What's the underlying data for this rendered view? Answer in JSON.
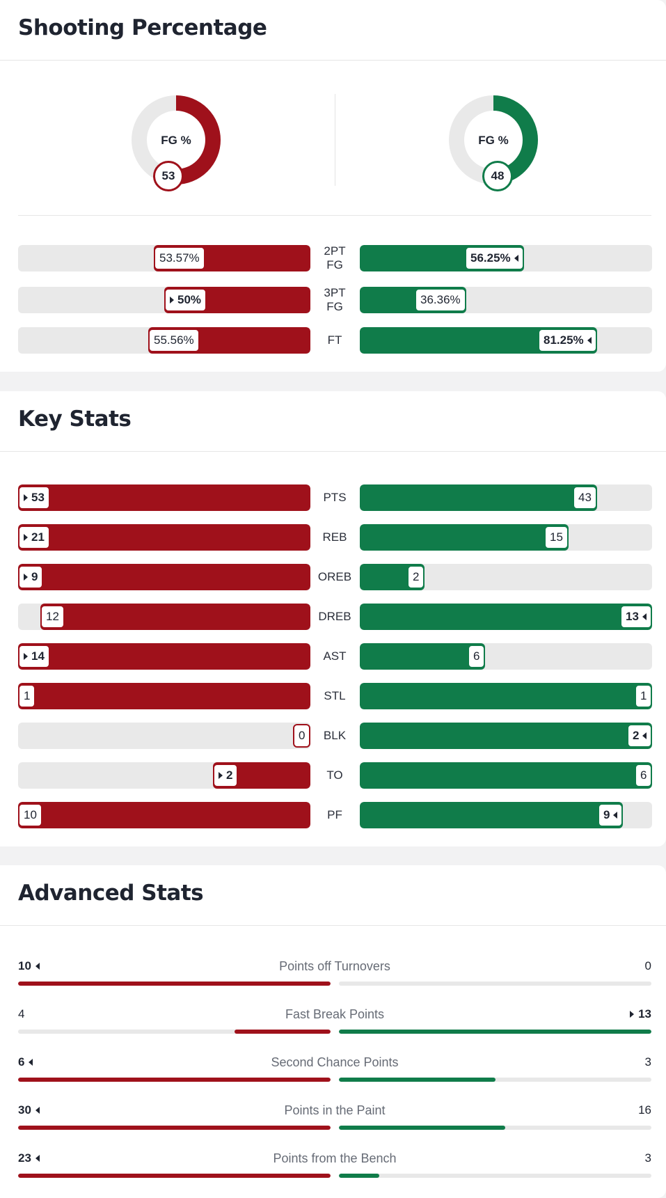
{
  "colors": {
    "team_a": "#9f111b",
    "team_b": "#107c4a",
    "track": "#e9e9e9"
  },
  "shooting": {
    "title": "Shooting Percentage",
    "donut_label": "FG %",
    "team_a_fg": "53",
    "team_b_fg": "48",
    "team_a_fg_fraction": 0.53,
    "team_b_fg_fraction": 0.48,
    "rows": [
      {
        "label_line1": "2PT",
        "label_line2": "FG",
        "a": "53.57%",
        "b": "56.25%",
        "a_frac": 0.5357,
        "b_frac": 0.5625,
        "leader": "b"
      },
      {
        "label_line1": "3PT",
        "label_line2": "FG",
        "a": "50%",
        "b": "36.36%",
        "a_frac": 0.5,
        "b_frac": 0.3636,
        "leader": "a"
      },
      {
        "label_line1": "FT",
        "label_line2": "",
        "a": "55.56%",
        "b": "81.25%",
        "a_frac": 0.5556,
        "b_frac": 0.8125,
        "leader": "b"
      }
    ]
  },
  "key_stats": {
    "title": "Key Stats",
    "rows": [
      {
        "label": "PTS",
        "a": "53",
        "b": "43",
        "a_frac": 1.0,
        "b_frac": 0.811,
        "leader": "a"
      },
      {
        "label": "REB",
        "a": "21",
        "b": "15",
        "a_frac": 1.0,
        "b_frac": 0.714,
        "leader": "a"
      },
      {
        "label": "OREB",
        "a": "9",
        "b": "2",
        "a_frac": 1.0,
        "b_frac": 0.222,
        "leader": "a"
      },
      {
        "label": "DREB",
        "a": "12",
        "b": "13",
        "a_frac": 0.923,
        "b_frac": 1.0,
        "leader": "b"
      },
      {
        "label": "AST",
        "a": "14",
        "b": "6",
        "a_frac": 1.0,
        "b_frac": 0.429,
        "leader": "a"
      },
      {
        "label": "STL",
        "a": "1",
        "b": "1",
        "a_frac": 1.0,
        "b_frac": 1.0,
        "leader": ""
      },
      {
        "label": "BLK",
        "a": "0",
        "b": "2",
        "a_frac": 0.0,
        "b_frac": 1.0,
        "leader": "b"
      },
      {
        "label": "TO",
        "a": "2",
        "b": "6",
        "a_frac": 0.333,
        "b_frac": 1.0,
        "leader": "a"
      },
      {
        "label": "PF",
        "a": "10",
        "b": "9",
        "a_frac": 1.0,
        "b_frac": 0.9,
        "leader": "b"
      }
    ]
  },
  "advanced_stats": {
    "title": "Advanced Stats",
    "rows": [
      {
        "label": "Points off Turnovers",
        "a": "10",
        "b": "0",
        "a_frac": 1.0,
        "b_frac": 0.0,
        "leader": "a"
      },
      {
        "label": "Fast Break Points",
        "a": "4",
        "b": "13",
        "a_frac": 0.308,
        "b_frac": 1.0,
        "leader": "b"
      },
      {
        "label": "Second Chance Points",
        "a": "6",
        "b": "3",
        "a_frac": 1.0,
        "b_frac": 0.5,
        "leader": "a"
      },
      {
        "label": "Points in the Paint",
        "a": "30",
        "b": "16",
        "a_frac": 1.0,
        "b_frac": 0.533,
        "leader": "a"
      },
      {
        "label": "Points from the Bench",
        "a": "23",
        "b": "3",
        "a_frac": 1.0,
        "b_frac": 0.13,
        "leader": "a"
      }
    ]
  }
}
